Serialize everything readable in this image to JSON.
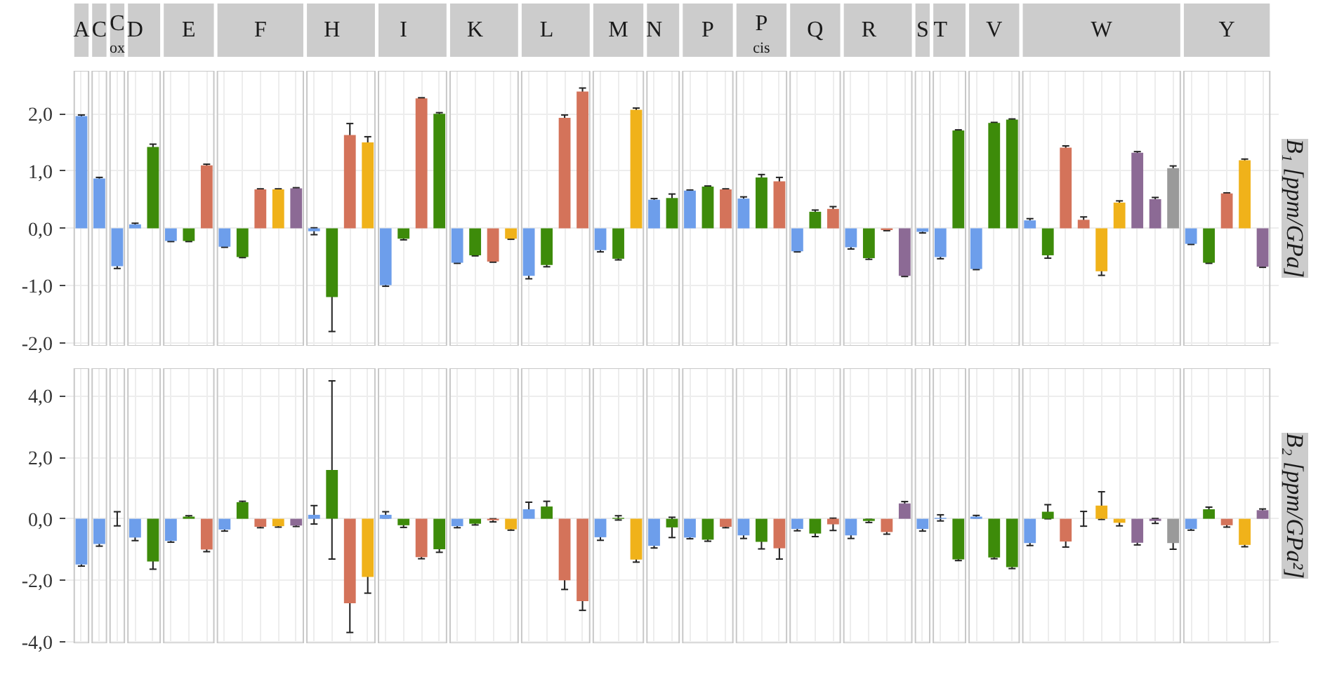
{
  "chart_data": [
    {
      "type": "bar",
      "categories": [
        "A",
        "C",
        "C$_{ox}$",
        "D",
        null,
        null,
        "E",
        null,
        null,
        null,
        "F",
        null,
        null,
        null,
        "H",
        null,
        null,
        null,
        "I",
        null,
        null,
        null,
        "K",
        null,
        null,
        null,
        "L",
        null,
        null,
        null,
        "M",
        null,
        "N",
        null,
        null,
        "P",
        null,
        null,
        "P$_{cis}$",
        null,
        null,
        "Q",
        null,
        null,
        "R",
        null,
        null,
        "S",
        "T",
        null,
        null,
        "V",
        null,
        null,
        null,
        null,
        null,
        "W",
        null,
        null,
        null,
        null,
        null,
        null,
        "Y",
        null,
        null
      ],
      "values": [
        1.96,
        0.87,
        -0.66,
        0.07,
        1.42,
        -0.22,
        -0.22,
        1.1,
        -0.32,
        -0.5,
        0.68,
        0.68,
        0.7,
        -0.05,
        -1.2,
        1.63,
        1.5,
        -0.99,
        -0.18,
        2.27,
        2.0,
        -0.6,
        -0.47,
        -0.58,
        -0.18,
        -0.83,
        -0.64,
        1.93,
        2.39,
        -0.38,
        -0.53,
        2.07,
        0.5,
        0.53,
        0.66,
        0.73,
        0.68,
        0.52,
        0.89,
        0.82,
        -0.4,
        0.29,
        0.34,
        -0.33,
        -0.52,
        -0.03,
        -0.83,
        -0.06,
        -0.5,
        1.71,
        -0.71,
        1.84,
        1.9,
        0.14,
        -0.47,
        1.41,
        0.15,
        -0.75,
        0.45,
        1.32,
        0.51,
        1.05,
        -0.27,
        -0.6,
        0.61,
        1.19,
        -0.67
      ],
      "errors": [
        0.02,
        0.02,
        0.04,
        0.02,
        0.05,
        0.01,
        0.01,
        0.02,
        0.01,
        0.01,
        0.01,
        0.01,
        0.01,
        0.06,
        0.6,
        0.2,
        0.1,
        0.02,
        0.02,
        0.01,
        0.02,
        0.01,
        0.01,
        0.01,
        0.01,
        0.05,
        0.03,
        0.05,
        0.06,
        0.03,
        0.02,
        0.03,
        0.02,
        0.07,
        0.01,
        0.01,
        0.01,
        0.03,
        0.05,
        0.07,
        0.01,
        0.03,
        0.04,
        0.03,
        0.02,
        0.01,
        0.01,
        0.02,
        0.03,
        0.01,
        0.01,
        0.01,
        0.01,
        0.03,
        0.05,
        0.03,
        0.05,
        0.07,
        0.03,
        0.02,
        0.03,
        0.04,
        0.01,
        0.01,
        0.01,
        0.02,
        0.01
      ],
      "colors": [
        "#6d9eeb",
        "#6d9eeb",
        "#6d9eeb",
        "#6d9eeb",
        "#3d8b0a",
        "#6d9eeb",
        "#3d8b0a",
        "#d4735a",
        "#6d9eeb",
        "#3d8b0a",
        "#d4735a",
        "#f0b21a",
        "#8c6a95",
        "#6d9eeb",
        "#3d8b0a",
        "#d4735a",
        "#f0b21a",
        "#6d9eeb",
        "#3d8b0a",
        "#d4735a",
        "#3d8b0a",
        "#6d9eeb",
        "#3d8b0a",
        "#d4735a",
        "#f0b21a",
        "#6d9eeb",
        "#3d8b0a",
        "#d4735a",
        "#d4735a",
        "#6d9eeb",
        "#3d8b0a",
        "#f0b21a",
        "#6d9eeb",
        "#3d8b0a",
        "#6d9eeb",
        "#3d8b0a",
        "#d4735a",
        "#6d9eeb",
        "#3d8b0a",
        "#d4735a",
        "#6d9eeb",
        "#3d8b0a",
        "#d4735a",
        "#6d9eeb",
        "#3d8b0a",
        "#d4735a",
        "#8c6a95",
        "#6d9eeb",
        "#6d9eeb",
        "#3d8b0a",
        "#6d9eeb",
        "#3d8b0a",
        "#3d8b0a",
        "#6d9eeb",
        "#3d8b0a",
        "#d4735a",
        "#d4735a",
        "#f0b21a",
        "#f0b21a",
        "#8c6a95",
        "#8c6a95",
        "#9a9a9a",
        "#6d9eeb",
        "#3d8b0a",
        "#d4735a",
        "#f0b21a",
        "#8c6a95"
      ],
      "ylim": [
        -2.05,
        2.75
      ],
      "yticks": [
        {
          "value": -2,
          "label": "-2,0"
        },
        {
          "value": -1,
          "label": "-1,0"
        },
        {
          "value": 0,
          "label": "0,0"
        },
        {
          "value": 1,
          "label": "1,0"
        },
        {
          "value": 2,
          "label": "2,0"
        }
      ],
      "ylabel": "B₁ [ppm/GPa]",
      "grid": true
    },
    {
      "type": "bar",
      "categories": [
        null,
        null,
        null,
        null,
        null,
        null,
        null,
        null,
        null,
        null,
        null,
        null,
        null,
        null,
        null,
        null,
        null,
        null,
        null,
        null,
        null,
        null,
        null,
        null,
        null,
        null,
        null,
        null,
        null,
        null,
        null,
        null,
        null,
        null,
        null,
        null,
        null,
        null,
        null,
        null,
        null,
        null,
        null,
        null,
        null,
        null,
        null,
        null,
        null,
        null,
        null,
        null,
        null,
        null,
        null,
        null,
        null,
        null,
        null,
        null,
        null,
        null,
        null,
        null,
        null,
        null,
        null
      ],
      "values": [
        -1.49,
        -0.82,
        0.0,
        -0.61,
        -1.39,
        -0.72,
        0.07,
        -1.0,
        -0.35,
        0.54,
        -0.26,
        -0.24,
        -0.22,
        0.13,
        1.59,
        -2.75,
        -1.89,
        0.13,
        -0.21,
        -1.25,
        -0.99,
        -0.24,
        -0.16,
        -0.05,
        -0.34,
        0.31,
        0.4,
        -2.0,
        -2.68,
        -0.6,
        0.03,
        -1.33,
        -0.88,
        -0.28,
        -0.61,
        -0.68,
        -0.26,
        -0.54,
        -0.75,
        -0.96,
        -0.33,
        -0.48,
        -0.18,
        -0.54,
        -0.07,
        -0.43,
        0.5,
        -0.33,
        0.03,
        -1.32,
        0.07,
        -1.26,
        -1.57,
        -0.79,
        0.23,
        -0.74,
        0.0,
        0.43,
        -0.13,
        -0.78,
        -0.07,
        -0.79,
        -0.33,
        0.31,
        -0.21,
        -0.85,
        0.28
      ],
      "errors": [
        0.05,
        0.07,
        0.23,
        0.1,
        0.25,
        0.04,
        0.03,
        0.07,
        0.05,
        0.03,
        0.03,
        0.03,
        0.03,
        0.3,
        2.9,
        0.95,
        0.53,
        0.1,
        0.07,
        0.05,
        0.1,
        0.05,
        0.04,
        0.05,
        0.03,
        0.23,
        0.17,
        0.3,
        0.3,
        0.1,
        0.07,
        0.08,
        0.07,
        0.33,
        0.04,
        0.05,
        0.03,
        0.1,
        0.23,
        0.35,
        0.06,
        0.1,
        0.2,
        0.1,
        0.05,
        0.07,
        0.06,
        0.07,
        0.1,
        0.04,
        0.04,
        0.04,
        0.05,
        0.08,
        0.23,
        0.18,
        0.24,
        0.45,
        0.1,
        0.07,
        0.08,
        0.2,
        0.04,
        0.07,
        0.06,
        0.06,
        0.04
      ],
      "colors": [
        "#6d9eeb",
        "#6d9eeb",
        "#6d9eeb",
        "#6d9eeb",
        "#3d8b0a",
        "#6d9eeb",
        "#3d8b0a",
        "#d4735a",
        "#6d9eeb",
        "#3d8b0a",
        "#d4735a",
        "#f0b21a",
        "#8c6a95",
        "#6d9eeb",
        "#3d8b0a",
        "#d4735a",
        "#f0b21a",
        "#6d9eeb",
        "#3d8b0a",
        "#d4735a",
        "#3d8b0a",
        "#6d9eeb",
        "#3d8b0a",
        "#d4735a",
        "#f0b21a",
        "#6d9eeb",
        "#3d8b0a",
        "#d4735a",
        "#d4735a",
        "#6d9eeb",
        "#3d8b0a",
        "#f0b21a",
        "#6d9eeb",
        "#3d8b0a",
        "#6d9eeb",
        "#3d8b0a",
        "#d4735a",
        "#6d9eeb",
        "#3d8b0a",
        "#d4735a",
        "#6d9eeb",
        "#3d8b0a",
        "#d4735a",
        "#6d9eeb",
        "#3d8b0a",
        "#d4735a",
        "#8c6a95",
        "#6d9eeb",
        "#6d9eeb",
        "#3d8b0a",
        "#6d9eeb",
        "#3d8b0a",
        "#3d8b0a",
        "#6d9eeb",
        "#3d8b0a",
        "#d4735a",
        "#d4735a",
        "#f0b21a",
        "#f0b21a",
        "#8c6a95",
        "#8c6a95",
        "#9a9a9a",
        "#6d9eeb",
        "#3d8b0a",
        "#d4735a",
        "#f0b21a",
        "#8c6a95"
      ],
      "ylim": [
        -4.05,
        4.9
      ],
      "yticks": [
        {
          "value": -4,
          "label": "-4,0"
        },
        {
          "value": -2,
          "label": "-2,0"
        },
        {
          "value": 0,
          "label": "0,0"
        },
        {
          "value": 2,
          "label": "2,0"
        },
        {
          "value": 4,
          "label": "4,0"
        }
      ],
      "ylabel": "B₂ [ppm/GPa²]",
      "grid": true,
      "tick_labels": "y"
    }
  ]
}
